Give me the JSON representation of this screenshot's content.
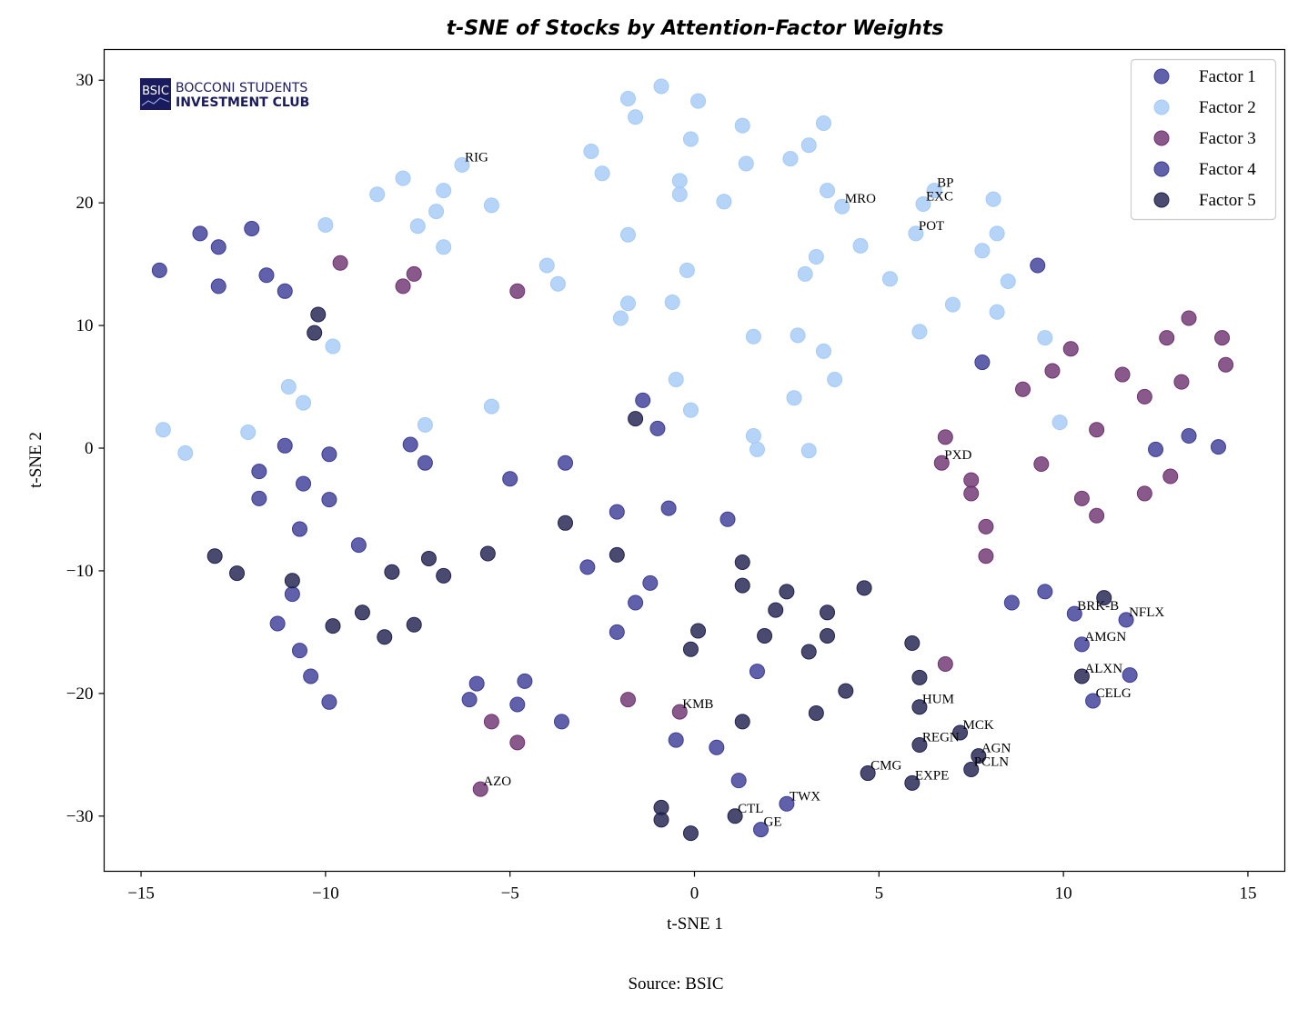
{
  "source_note": "Source: BSIC",
  "logo": {
    "mark": "BSIC",
    "line1": "BOCCONI STUDENTS",
    "line2": "INVESTMENT CLUB"
  },
  "chart_data": {
    "type": "scatter",
    "title": "t-SNE of Stocks by Attention-Factor Weights",
    "xlabel": "t-SNE 1",
    "ylabel": "t-SNE 2",
    "xlim": [
      -16,
      16
    ],
    "ylim": [
      -34.5,
      32.5
    ],
    "xticks": [
      -15,
      -10,
      -5,
      0,
      5,
      10,
      15
    ],
    "yticks": [
      -30,
      -20,
      -10,
      0,
      10,
      20,
      30
    ],
    "xtick_labels": [
      "−15",
      "−10",
      "−5",
      "0",
      "5",
      "10",
      "15"
    ],
    "ytick_labels": [
      "−30",
      "−20",
      "−10",
      "0",
      "10",
      "20",
      "30"
    ],
    "grid": false,
    "legend_position": "top-right",
    "series": [
      {
        "name": "Factor 1",
        "color": "#3d3d98",
        "points": []
      },
      {
        "name": "Factor 2",
        "color": "#a6cbf5",
        "points": [
          [
            -1.8,
            28.5,
            ""
          ],
          [
            -0.9,
            29.5,
            ""
          ],
          [
            0.1,
            28.3,
            ""
          ],
          [
            -1.6,
            27.0,
            ""
          ],
          [
            1.3,
            26.3,
            ""
          ],
          [
            3.5,
            26.5,
            ""
          ],
          [
            -0.1,
            25.2,
            ""
          ],
          [
            -2.8,
            24.2,
            ""
          ],
          [
            3.1,
            24.7,
            ""
          ],
          [
            -6.3,
            23.1,
            "RIG"
          ],
          [
            1.4,
            23.2,
            ""
          ],
          [
            2.6,
            23.6,
            ""
          ],
          [
            -7.9,
            22.0,
            ""
          ],
          [
            -2.5,
            22.4,
            ""
          ],
          [
            -0.4,
            21.8,
            ""
          ],
          [
            -8.6,
            20.7,
            ""
          ],
          [
            -6.8,
            21.0,
            ""
          ],
          [
            -0.4,
            20.7,
            ""
          ],
          [
            0.8,
            20.1,
            ""
          ],
          [
            3.6,
            21.0,
            ""
          ],
          [
            6.5,
            21.0,
            "BP"
          ],
          [
            8.1,
            20.3,
            ""
          ],
          [
            -5.5,
            19.8,
            ""
          ],
          [
            6.2,
            19.9,
            "EXC"
          ],
          [
            4.0,
            19.7,
            "MRO"
          ],
          [
            -7.0,
            19.3,
            ""
          ],
          [
            -10.0,
            18.2,
            ""
          ],
          [
            -7.5,
            18.1,
            ""
          ],
          [
            -1.8,
            17.4,
            ""
          ],
          [
            6.0,
            17.5,
            "POT"
          ],
          [
            8.2,
            17.5,
            ""
          ],
          [
            -6.8,
            16.4,
            ""
          ],
          [
            4.5,
            16.5,
            ""
          ],
          [
            7.8,
            16.1,
            ""
          ],
          [
            3.3,
            15.6,
            ""
          ],
          [
            -4.0,
            14.9,
            ""
          ],
          [
            -0.2,
            14.5,
            ""
          ],
          [
            3.0,
            14.2,
            ""
          ],
          [
            5.3,
            13.8,
            ""
          ],
          [
            8.5,
            13.6,
            ""
          ],
          [
            -3.7,
            13.4,
            ""
          ],
          [
            -1.8,
            11.8,
            ""
          ],
          [
            -0.6,
            11.9,
            ""
          ],
          [
            7.0,
            11.7,
            ""
          ],
          [
            8.2,
            11.1,
            ""
          ],
          [
            -2.0,
            10.6,
            ""
          ],
          [
            6.1,
            9.5,
            ""
          ],
          [
            1.6,
            9.1,
            ""
          ],
          [
            2.8,
            9.2,
            ""
          ],
          [
            9.5,
            9.0,
            ""
          ],
          [
            -9.8,
            8.3,
            ""
          ],
          [
            3.5,
            7.9,
            ""
          ],
          [
            -0.5,
            5.6,
            ""
          ],
          [
            3.8,
            5.6,
            ""
          ],
          [
            -11.0,
            5.0,
            ""
          ],
          [
            -10.6,
            3.7,
            ""
          ],
          [
            2.7,
            4.1,
            ""
          ],
          [
            -5.5,
            3.4,
            ""
          ],
          [
            -0.1,
            3.1,
            ""
          ],
          [
            9.9,
            2.1,
            ""
          ],
          [
            -7.3,
            1.9,
            ""
          ],
          [
            -14.4,
            1.5,
            ""
          ],
          [
            -12.1,
            1.3,
            ""
          ],
          [
            1.6,
            1.0,
            ""
          ],
          [
            -13.8,
            -0.4,
            ""
          ],
          [
            1.7,
            -0.1,
            ""
          ],
          [
            3.1,
            -0.2,
            ""
          ]
        ]
      },
      {
        "name": "Factor 3",
        "color": "#6e3470",
        "points": [
          [
            -9.6,
            15.1,
            ""
          ],
          [
            -7.6,
            14.2,
            ""
          ],
          [
            -7.9,
            13.2,
            ""
          ],
          [
            -4.8,
            12.8,
            ""
          ],
          [
            13.4,
            10.6,
            ""
          ],
          [
            12.8,
            9.0,
            ""
          ],
          [
            14.3,
            9.0,
            ""
          ],
          [
            10.2,
            8.1,
            ""
          ],
          [
            14.4,
            6.8,
            ""
          ],
          [
            9.7,
            6.3,
            ""
          ],
          [
            11.6,
            6.0,
            ""
          ],
          [
            13.2,
            5.4,
            ""
          ],
          [
            8.9,
            4.8,
            ""
          ],
          [
            12.2,
            4.2,
            ""
          ],
          [
            10.9,
            1.5,
            ""
          ],
          [
            6.8,
            0.9,
            ""
          ],
          [
            6.7,
            -1.2,
            "PXD"
          ],
          [
            9.4,
            -1.3,
            ""
          ],
          [
            12.9,
            -2.3,
            ""
          ],
          [
            7.5,
            -2.6,
            ""
          ],
          [
            7.5,
            -3.7,
            ""
          ],
          [
            12.2,
            -3.7,
            ""
          ],
          [
            10.5,
            -4.1,
            ""
          ],
          [
            10.9,
            -5.5,
            ""
          ],
          [
            7.9,
            -6.4,
            ""
          ],
          [
            7.9,
            -8.8,
            ""
          ],
          [
            6.8,
            -17.6,
            ""
          ],
          [
            -1.8,
            -20.5,
            ""
          ],
          [
            -0.4,
            -21.5,
            "KMB"
          ],
          [
            -5.5,
            -22.3,
            ""
          ],
          [
            -4.8,
            -24.0,
            ""
          ],
          [
            -5.8,
            -27.8,
            "AZO"
          ]
        ]
      },
      {
        "name": "Factor 4",
        "color": "#3d3d98",
        "points": [
          [
            -12.0,
            17.9,
            ""
          ],
          [
            -13.4,
            17.5,
            ""
          ],
          [
            -12.9,
            16.4,
            ""
          ],
          [
            -14.5,
            14.5,
            ""
          ],
          [
            -11.6,
            14.1,
            ""
          ],
          [
            9.3,
            14.9,
            ""
          ],
          [
            -12.9,
            13.2,
            ""
          ],
          [
            -11.1,
            12.8,
            ""
          ],
          [
            7.8,
            7.0,
            ""
          ],
          [
            -1.4,
            3.9,
            ""
          ],
          [
            -1.0,
            1.6,
            ""
          ],
          [
            -7.7,
            0.3,
            ""
          ],
          [
            -11.1,
            0.2,
            ""
          ],
          [
            13.4,
            1.0,
            ""
          ],
          [
            14.2,
            0.1,
            ""
          ],
          [
            12.5,
            -0.1,
            ""
          ],
          [
            -9.9,
            -0.5,
            ""
          ],
          [
            -7.3,
            -1.2,
            ""
          ],
          [
            -3.5,
            -1.2,
            ""
          ],
          [
            -11.8,
            -1.9,
            ""
          ],
          [
            -5.0,
            -2.5,
            ""
          ],
          [
            -10.6,
            -2.9,
            ""
          ],
          [
            -11.8,
            -4.1,
            ""
          ],
          [
            -9.9,
            -4.2,
            ""
          ],
          [
            -0.7,
            -4.9,
            ""
          ],
          [
            -2.1,
            -5.2,
            ""
          ],
          [
            0.9,
            -5.8,
            ""
          ],
          [
            -10.7,
            -6.6,
            ""
          ],
          [
            -9.1,
            -7.9,
            ""
          ],
          [
            -2.9,
            -9.7,
            ""
          ],
          [
            -1.2,
            -11.0,
            ""
          ],
          [
            -10.9,
            -11.9,
            ""
          ],
          [
            -1.6,
            -12.6,
            ""
          ],
          [
            8.6,
            -12.6,
            ""
          ],
          [
            9.5,
            -11.7,
            ""
          ],
          [
            10.3,
            -13.5,
            "BRK-B"
          ],
          [
            11.7,
            -14.0,
            "NFLX"
          ],
          [
            -11.3,
            -14.3,
            ""
          ],
          [
            -2.1,
            -15.0,
            ""
          ],
          [
            10.5,
            -16.0,
            "AMGN"
          ],
          [
            -10.7,
            -16.5,
            ""
          ],
          [
            1.7,
            -18.2,
            ""
          ],
          [
            -10.4,
            -18.6,
            ""
          ],
          [
            11.8,
            -18.5,
            ""
          ],
          [
            -4.6,
            -19.0,
            ""
          ],
          [
            -5.9,
            -19.2,
            ""
          ],
          [
            -6.1,
            -20.5,
            ""
          ],
          [
            -4.8,
            -20.9,
            ""
          ],
          [
            -9.9,
            -20.7,
            ""
          ],
          [
            10.8,
            -20.6,
            "CELG"
          ],
          [
            -3.6,
            -22.3,
            ""
          ],
          [
            -0.5,
            -23.8,
            ""
          ],
          [
            0.6,
            -24.4,
            ""
          ],
          [
            1.2,
            -27.1,
            ""
          ],
          [
            2.5,
            -29.0,
            "TWX"
          ],
          [
            1.8,
            -31.1,
            "GE"
          ]
        ]
      },
      {
        "name": "Factor 5",
        "color": "#222250",
        "points": [
          [
            -10.2,
            10.9,
            ""
          ],
          [
            -10.3,
            9.4,
            ""
          ],
          [
            -1.6,
            2.4,
            ""
          ],
          [
            -3.5,
            -6.1,
            ""
          ],
          [
            -5.6,
            -8.6,
            ""
          ],
          [
            -2.1,
            -8.7,
            ""
          ],
          [
            -13.0,
            -8.8,
            ""
          ],
          [
            -7.2,
            -9.0,
            ""
          ],
          [
            -8.2,
            -10.1,
            ""
          ],
          [
            1.3,
            -9.3,
            ""
          ],
          [
            -12.4,
            -10.2,
            ""
          ],
          [
            -6.8,
            -10.4,
            ""
          ],
          [
            -10.9,
            -10.8,
            ""
          ],
          [
            1.3,
            -11.2,
            ""
          ],
          [
            4.6,
            -11.4,
            ""
          ],
          [
            2.5,
            -11.7,
            ""
          ],
          [
            11.1,
            -12.2,
            ""
          ],
          [
            2.2,
            -13.2,
            ""
          ],
          [
            3.6,
            -13.4,
            ""
          ],
          [
            -9.0,
            -13.4,
            ""
          ],
          [
            -9.8,
            -14.5,
            ""
          ],
          [
            -7.6,
            -14.4,
            ""
          ],
          [
            0.1,
            -14.9,
            ""
          ],
          [
            -8.4,
            -15.4,
            ""
          ],
          [
            1.9,
            -15.3,
            ""
          ],
          [
            3.6,
            -15.3,
            ""
          ],
          [
            5.9,
            -15.9,
            ""
          ],
          [
            -0.1,
            -16.4,
            ""
          ],
          [
            3.1,
            -16.6,
            ""
          ],
          [
            6.1,
            -18.7,
            ""
          ],
          [
            10.5,
            -18.6,
            "ALXN"
          ],
          [
            4.1,
            -19.8,
            ""
          ],
          [
            6.1,
            -21.1,
            "HUM"
          ],
          [
            3.3,
            -21.6,
            ""
          ],
          [
            1.3,
            -22.3,
            ""
          ],
          [
            7.2,
            -23.2,
            "MCK"
          ],
          [
            6.1,
            -24.2,
            "REGN"
          ],
          [
            7.7,
            -25.1,
            "AGN"
          ],
          [
            7.5,
            -26.2,
            "PCLN"
          ],
          [
            4.7,
            -26.5,
            "CMG"
          ],
          [
            5.9,
            -27.3,
            "EXPE"
          ],
          [
            -0.9,
            -29.3,
            ""
          ],
          [
            -0.9,
            -30.3,
            ""
          ],
          [
            1.1,
            -30.0,
            "CTL"
          ],
          [
            -0.1,
            -31.4,
            ""
          ]
        ]
      }
    ]
  }
}
